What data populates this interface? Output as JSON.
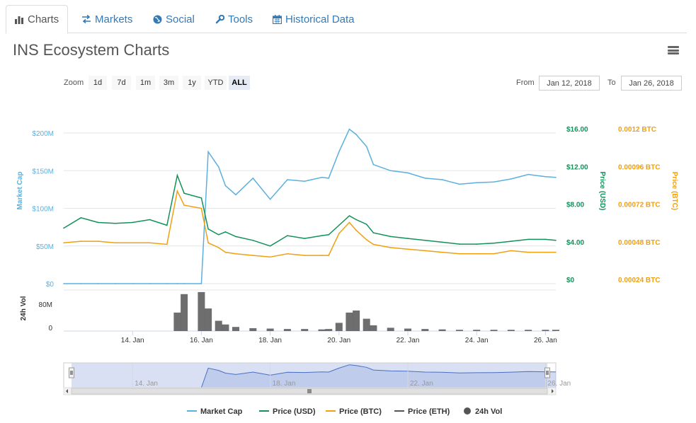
{
  "tabs": [
    {
      "label": "Charts",
      "icon": "bar-chart-icon"
    },
    {
      "label": "Markets",
      "icon": "exchange-icon"
    },
    {
      "label": "Social",
      "icon": "globe-icon"
    },
    {
      "label": "Tools",
      "icon": "wrench-icon"
    },
    {
      "label": "Historical Data",
      "icon": "calendar-icon"
    }
  ],
  "title": "INS Ecosystem Charts",
  "zoom": {
    "label": "Zoom",
    "options": [
      "1d",
      "7d",
      "1m",
      "3m",
      "1y",
      "YTD",
      "ALL"
    ],
    "selected": "ALL"
  },
  "range": {
    "from_label": "From",
    "from_value": "Jan 12, 2018",
    "to_label": "To",
    "to_value": "Jan 26, 2018"
  },
  "colors": {
    "market_cap": "#5bb0de",
    "price_usd": "#13915a",
    "price_btc": "#f0a010",
    "price_eth": "#555555",
    "volume": "#555555",
    "navigator_fill": "#c9d3ee"
  },
  "chart_data": [
    {
      "type": "line",
      "x_ticks": [
        "14. Jan",
        "16. Jan",
        "18. Jan",
        "20. Jan",
        "22. Jan",
        "24. Jan",
        "26. Jan"
      ],
      "x": [
        "12. Jan",
        "12.5 Jan",
        "13. Jan",
        "13.5 Jan",
        "14. Jan",
        "14.5 Jan",
        "15. Jan",
        "15.3 Jan",
        "15.5 Jan",
        "16. Jan",
        "16.2 Jan",
        "16.5 Jan",
        "16.7 Jan",
        "17. Jan",
        "17.5 Jan",
        "18. Jan",
        "18.5 Jan",
        "19. Jan",
        "19.5 Jan",
        "19.7 Jan",
        "20. Jan",
        "20.3 Jan",
        "20.5 Jan",
        "20.8 Jan",
        "21. Jan",
        "21.5 Jan",
        "22. Jan",
        "22.5 Jan",
        "23. Jan",
        "23.5 Jan",
        "24. Jan",
        "24.5 Jan",
        "25. Jan",
        "25.5 Jan",
        "26. Jan",
        "26.3 Jan"
      ],
      "series": [
        {
          "name": "Market Cap",
          "axis": "left",
          "unit": "USD",
          "values": [
            0,
            0,
            0,
            0,
            0,
            0,
            0,
            0,
            0,
            0,
            175000000,
            155000000,
            130000000,
            118000000,
            140000000,
            112000000,
            138000000,
            136000000,
            141000000,
            140000000,
            175000000,
            205000000,
            198000000,
            182000000,
            158000000,
            150000000,
            147000000,
            140000000,
            138000000,
            132000000,
            134000000,
            135000000,
            139000000,
            145000000,
            142000000,
            141000000
          ]
        },
        {
          "name": "Price (USD)",
          "axis": "right",
          "unit": "USD",
          "values": [
            5.9,
            7.0,
            6.5,
            6.4,
            6.5,
            6.8,
            6.2,
            11.5,
            9.6,
            9.1,
            5.8,
            5.2,
            5.5,
            5.0,
            4.6,
            4.0,
            5.1,
            4.8,
            5.1,
            5.2,
            6.2,
            7.2,
            6.8,
            6.3,
            5.4,
            5.0,
            4.8,
            4.6,
            4.4,
            4.2,
            4.2,
            4.3,
            4.5,
            4.7,
            4.7,
            4.6
          ]
        },
        {
          "name": "Price (BTC)",
          "axis": "right2",
          "unit": "BTC",
          "values": [
            0.0005,
            0.00051,
            0.00051,
            0.0005,
            0.0005,
            0.0005,
            0.00049,
            0.00083,
            0.00074,
            0.00072,
            0.0005,
            0.00047,
            0.00044,
            0.00043,
            0.00042,
            0.00041,
            0.00043,
            0.00042,
            0.00042,
            0.00042,
            0.00056,
            0.00063,
            0.00058,
            0.00052,
            0.00049,
            0.00047,
            0.00046,
            0.00045,
            0.00044,
            0.00043,
            0.00043,
            0.00043,
            0.00045,
            0.00044,
            0.00044,
            0.00044
          ]
        }
      ],
      "y_axes": {
        "left": {
          "label": "Market Cap",
          "ticks": [
            "$0",
            "$50M",
            "$100M",
            "$150M",
            "$200M"
          ],
          "range": [
            0,
            200000000
          ]
        },
        "right": {
          "label": "Price (USD)",
          "ticks": [
            "$0",
            "$4.00",
            "$8.00",
            "$12.00",
            "$16.00"
          ],
          "range": [
            0,
            16
          ]
        },
        "right2": {
          "label": "Price (BTC)",
          "ticks": [
            "0.00024 BTC",
            "0.00048 BTC",
            "0.00072 BTC",
            "0.00096 BTC",
            "0.0012 BTC"
          ],
          "range": [
            0.00024,
            0.0012
          ]
        }
      },
      "grid": true
    },
    {
      "type": "bar",
      "name": "24h Vol",
      "y_label": "24h Vol",
      "y_ticks": [
        "0",
        "80M"
      ],
      "ylim": [
        0,
        100000000
      ],
      "x": [
        "12. Jan",
        "12.5 Jan",
        "13. Jan",
        "13.5 Jan",
        "14. Jan",
        "14.5 Jan",
        "15. Jan",
        "15.3 Jan",
        "15.5 Jan",
        "16. Jan",
        "16.2 Jan",
        "16.5 Jan",
        "16.7 Jan",
        "17. Jan",
        "17.5 Jan",
        "18. Jan",
        "18.5 Jan",
        "19. Jan",
        "19.5 Jan",
        "19.7 Jan",
        "20. Jan",
        "20.3 Jan",
        "20.5 Jan",
        "20.8 Jan",
        "21. Jan",
        "21.5 Jan",
        "22. Jan",
        "22.5 Jan",
        "23. Jan",
        "23.5 Jan",
        "24. Jan",
        "24.5 Jan",
        "25. Jan",
        "25.5 Jan",
        "26. Jan",
        "26.3 Jan"
      ],
      "values": [
        0,
        0,
        0,
        0,
        0,
        0,
        0,
        45000000,
        90000000,
        95000000,
        55000000,
        25000000,
        16000000,
        10000000,
        7000000,
        6000000,
        5000000,
        5000000,
        4000000,
        5000000,
        20000000,
        45000000,
        50000000,
        30000000,
        14000000,
        8000000,
        6000000,
        5000000,
        4000000,
        3000000,
        3000000,
        3000000,
        3000000,
        3000000,
        3000000,
        3000000
      ]
    },
    {
      "type": "area",
      "name": "navigator",
      "x_ticks": [
        "14. Jan",
        "18. Jan",
        "22. Jan",
        "26. Jan"
      ]
    }
  ],
  "legend": [
    {
      "label": "Market Cap",
      "marker": "line",
      "color": "#5bb0de"
    },
    {
      "label": "Price (USD)",
      "marker": "line",
      "color": "#13915a"
    },
    {
      "label": "Price (BTC)",
      "marker": "line",
      "color": "#f0a010"
    },
    {
      "label": "Price (ETH)",
      "marker": "line",
      "color": "#555555"
    },
    {
      "label": "24h Vol",
      "marker": "dot",
      "color": "#555555"
    }
  ]
}
